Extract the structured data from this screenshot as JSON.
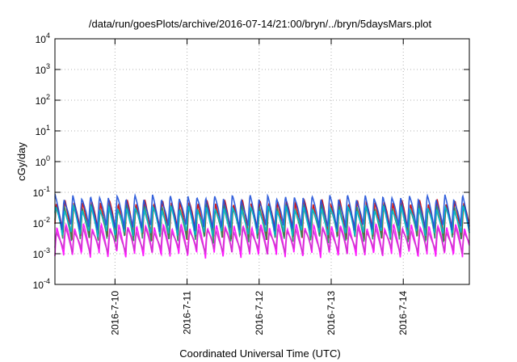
{
  "chart_data": {
    "type": "line",
    "title": "/data/run/goesPlots/archive/2016-07-14/21:00/bryn/../bryn/5daysMars.plot",
    "xlabel": "Coordinated Universal Time (UTC)",
    "ylabel": "cGy/day",
    "y_scale": "log",
    "ylim": [
      0.0001,
      10000
    ],
    "xlim": [
      "2016-07-09T04:00",
      "2016-07-14T22:00"
    ],
    "x_tick_labels": [
      "2016-7-10",
      "2016-7-11",
      "2016-7-12",
      "2016-7-13",
      "2016-7-14"
    ],
    "x_tick_dates": [
      "2016-07-10",
      "2016-07-11",
      "2016-07-12",
      "2016-07-13",
      "2016-07-14"
    ],
    "y_tick_labels": [
      {
        "base": "10",
        "exp": "-4"
      },
      {
        "base": "10",
        "exp": "-3"
      },
      {
        "base": "10",
        "exp": "-2"
      },
      {
        "base": "10",
        "exp": "-1"
      },
      {
        "base": "10",
        "exp": "0"
      },
      {
        "base": "10",
        "exp": "1"
      },
      {
        "base": "10",
        "exp": "2"
      },
      {
        "base": "10",
        "exp": "3"
      },
      {
        "base": "10",
        "exp": "4"
      }
    ],
    "y_tick_values": [
      0.0001,
      0.001,
      0.01,
      0.1,
      1,
      10,
      100,
      1000,
      10000
    ],
    "grid": true,
    "legend": "none",
    "cycle_hours": 2.95,
    "series": [
      {
        "color": "#ff00ff",
        "peak": 0.008,
        "trough": 0.0008
      },
      {
        "color": "#cc33cc",
        "peak": 0.006,
        "trough": 0.0011
      },
      {
        "color": "#cc0000",
        "peak": 0.05,
        "trough": 0.003
      },
      {
        "color": "#2e8b57",
        "peak": 0.035,
        "trough": 0.0025
      },
      {
        "color": "#00bcd4",
        "peak": 0.03,
        "trough": 0.004
      },
      {
        "color": "#1e50d8",
        "peak": 0.07,
        "trough": 0.006
      }
    ]
  }
}
